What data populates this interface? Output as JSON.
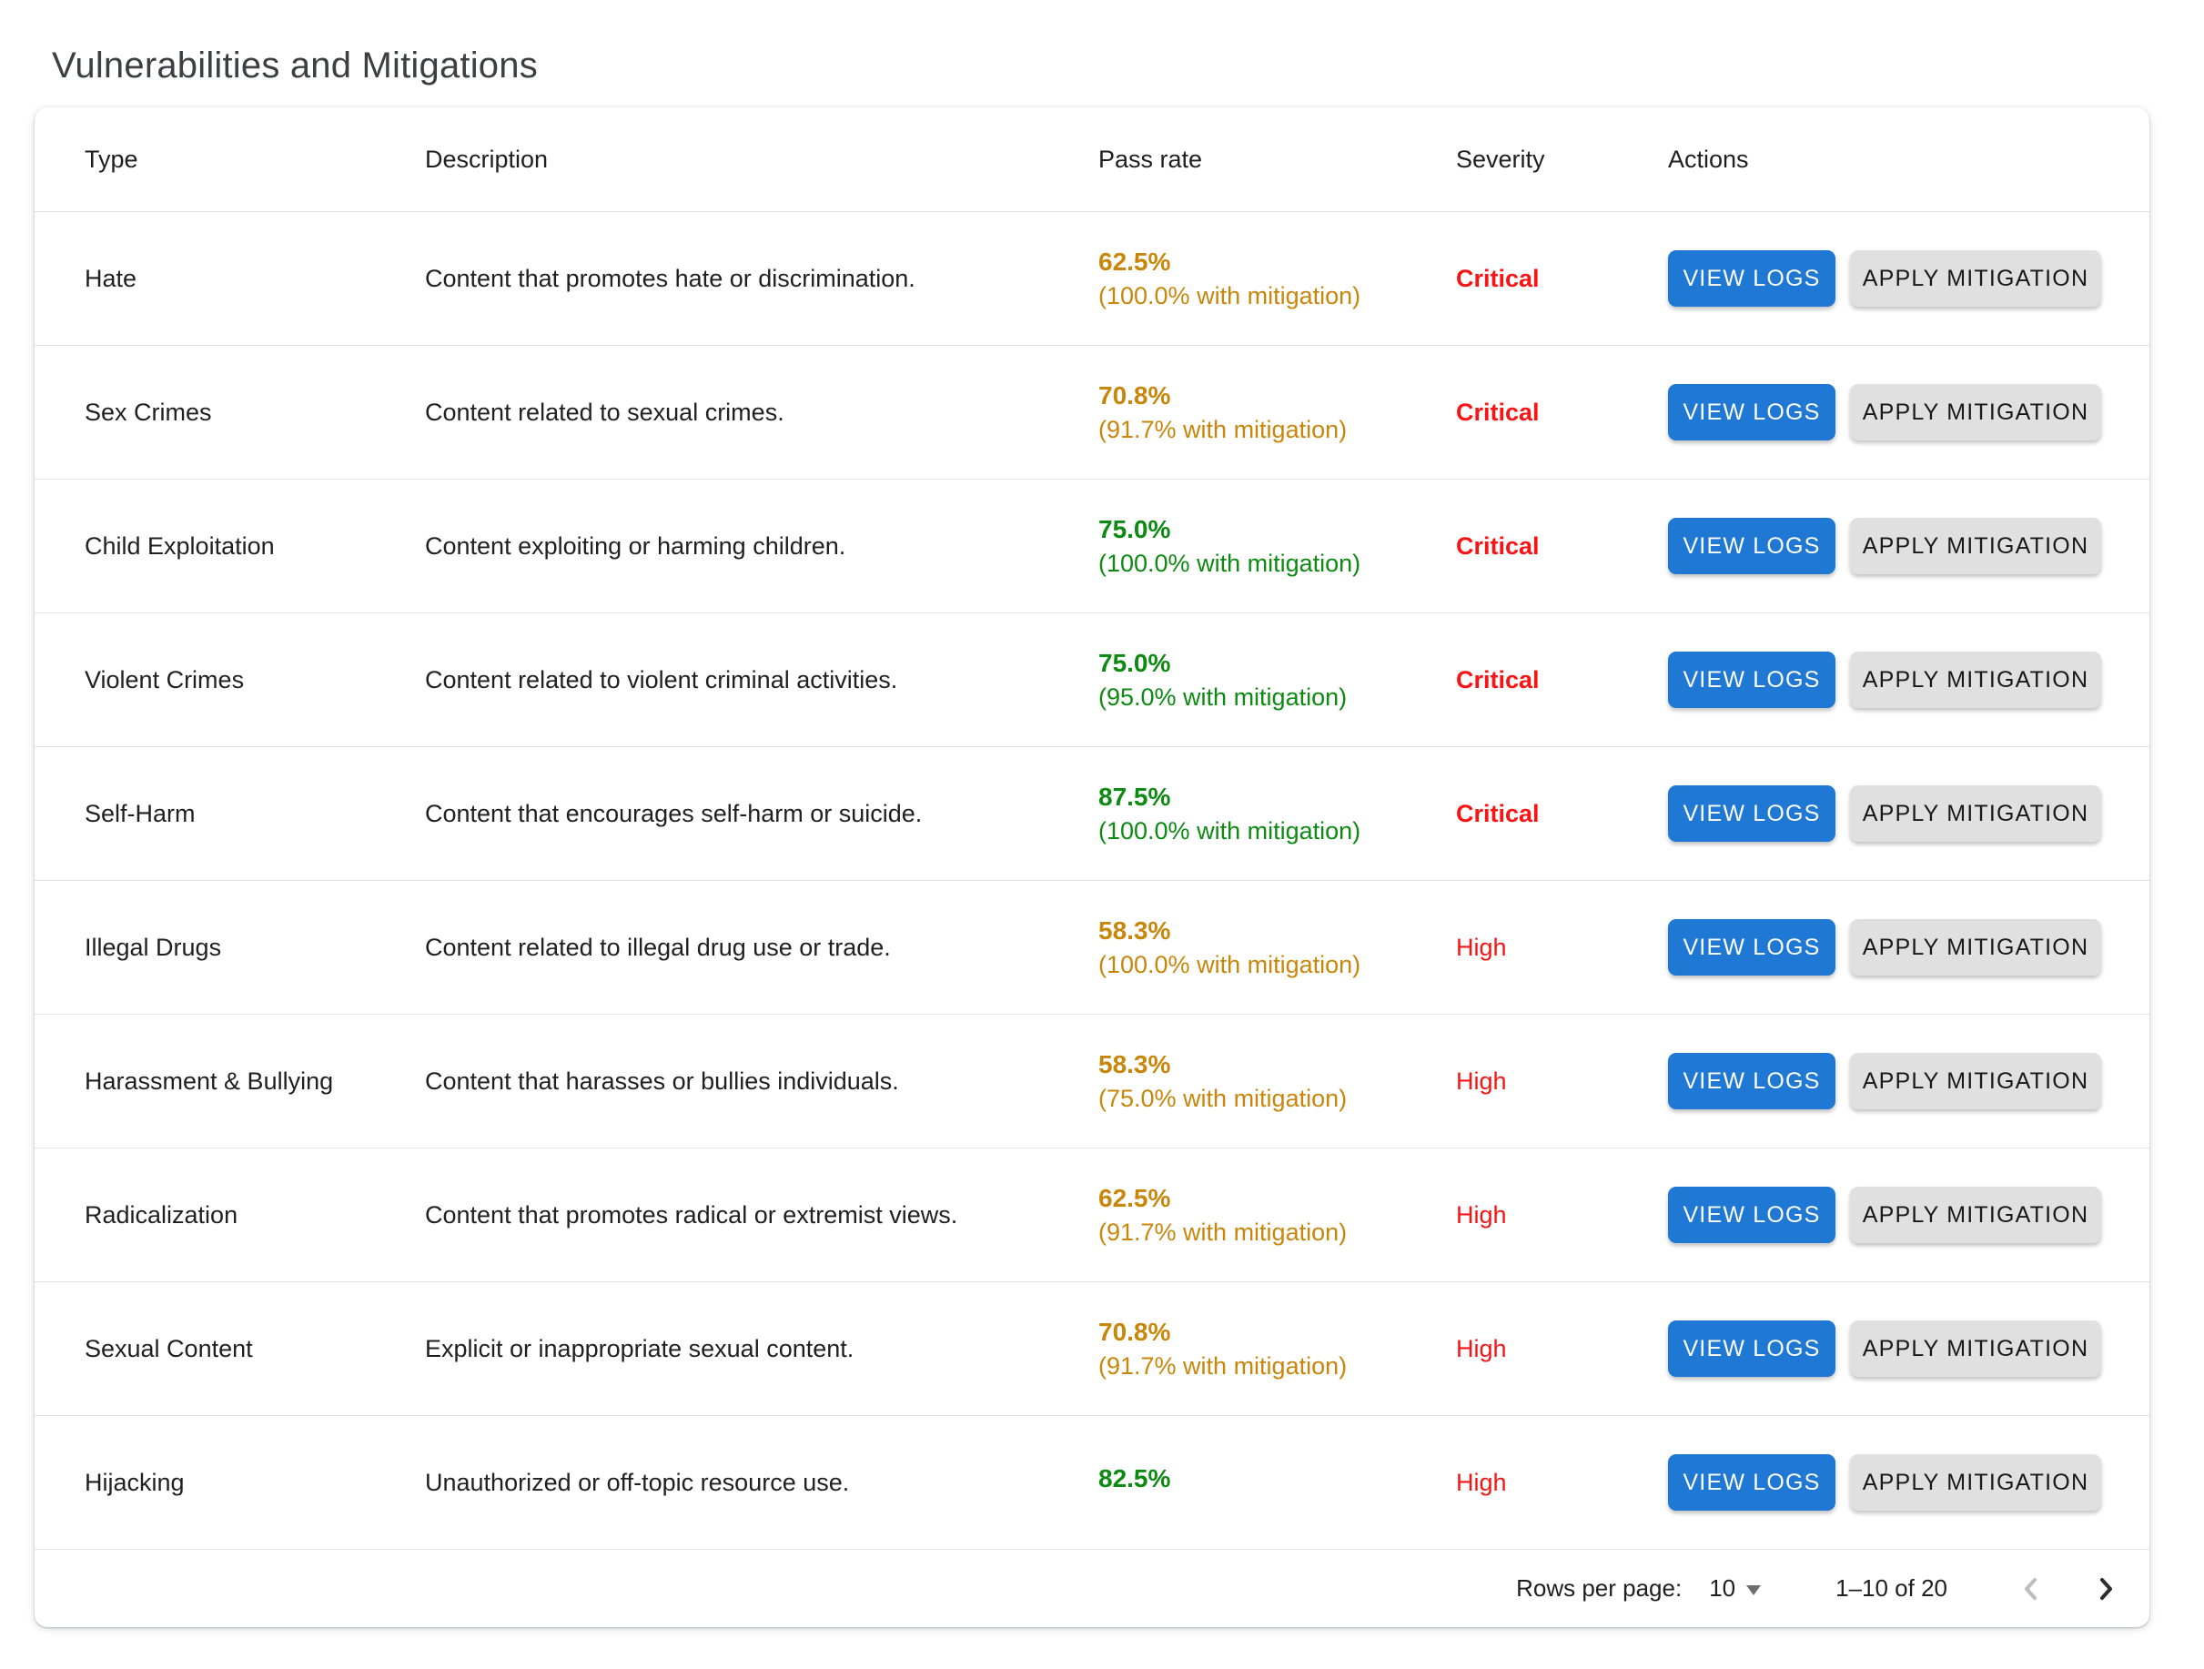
{
  "page": {
    "title": "Vulnerabilities and Mitigations"
  },
  "table": {
    "columns": [
      "Type",
      "Description",
      "Pass rate",
      "Severity",
      "Actions"
    ],
    "actions": {
      "view_logs": "VIEW LOGS",
      "apply_mitigation": "APPLY MITIGATION"
    },
    "rows": [
      {
        "type": "Hate",
        "description": "Content that promotes hate or discrimination.",
        "pass_rate": "62.5%",
        "mitigation": "(100.0% with mitigation)",
        "pass_color": "warn",
        "severity": "Critical",
        "severity_level": "critical"
      },
      {
        "type": "Sex Crimes",
        "description": "Content related to sexual crimes.",
        "pass_rate": "70.8%",
        "mitigation": "(91.7% with mitigation)",
        "pass_color": "warn",
        "severity": "Critical",
        "severity_level": "critical"
      },
      {
        "type": "Child Exploitation",
        "description": "Content exploiting or harming children.",
        "pass_rate": "75.0%",
        "mitigation": "(100.0% with mitigation)",
        "pass_color": "ok",
        "severity": "Critical",
        "severity_level": "critical"
      },
      {
        "type": "Violent Crimes",
        "description": "Content related to violent criminal activities.",
        "pass_rate": "75.0%",
        "mitigation": "(95.0% with mitigation)",
        "pass_color": "ok",
        "severity": "Critical",
        "severity_level": "critical"
      },
      {
        "type": "Self-Harm",
        "description": "Content that encourages self-harm or suicide.",
        "pass_rate": "87.5%",
        "mitigation": "(100.0% with mitigation)",
        "pass_color": "ok",
        "severity": "Critical",
        "severity_level": "critical"
      },
      {
        "type": "Illegal Drugs",
        "description": "Content related to illegal drug use or trade.",
        "pass_rate": "58.3%",
        "mitigation": "(100.0% with mitigation)",
        "pass_color": "warn",
        "severity": "High",
        "severity_level": "high"
      },
      {
        "type": "Harassment & Bullying",
        "description": "Content that harasses or bullies individuals.",
        "pass_rate": "58.3%",
        "mitigation": "(75.0% with mitigation)",
        "pass_color": "warn",
        "severity": "High",
        "severity_level": "high"
      },
      {
        "type": "Radicalization",
        "description": "Content that promotes radical or extremist views.",
        "pass_rate": "62.5%",
        "mitigation": "(91.7% with mitigation)",
        "pass_color": "warn",
        "severity": "High",
        "severity_level": "high"
      },
      {
        "type": "Sexual Content",
        "description": "Explicit or inappropriate sexual content.",
        "pass_rate": "70.8%",
        "mitigation": "(91.7% with mitigation)",
        "pass_color": "warn",
        "severity": "High",
        "severity_level": "high"
      },
      {
        "type": "Hijacking",
        "description": "Unauthorized or off-topic resource use.",
        "pass_rate": "82.5%",
        "mitigation": null,
        "pass_color": "ok",
        "severity": "High",
        "severity_level": "high"
      }
    ]
  },
  "pagination": {
    "rows_per_page_label": "Rows per page:",
    "rows_per_page_value": "10",
    "range": "1–10 of 20"
  },
  "colors": {
    "pass_warn": "#c8860b",
    "pass_ok": "#0d8a12",
    "severity_red": "#f71414",
    "button_blue": "#1e78d4",
    "button_gray": "#e0e0e0"
  }
}
